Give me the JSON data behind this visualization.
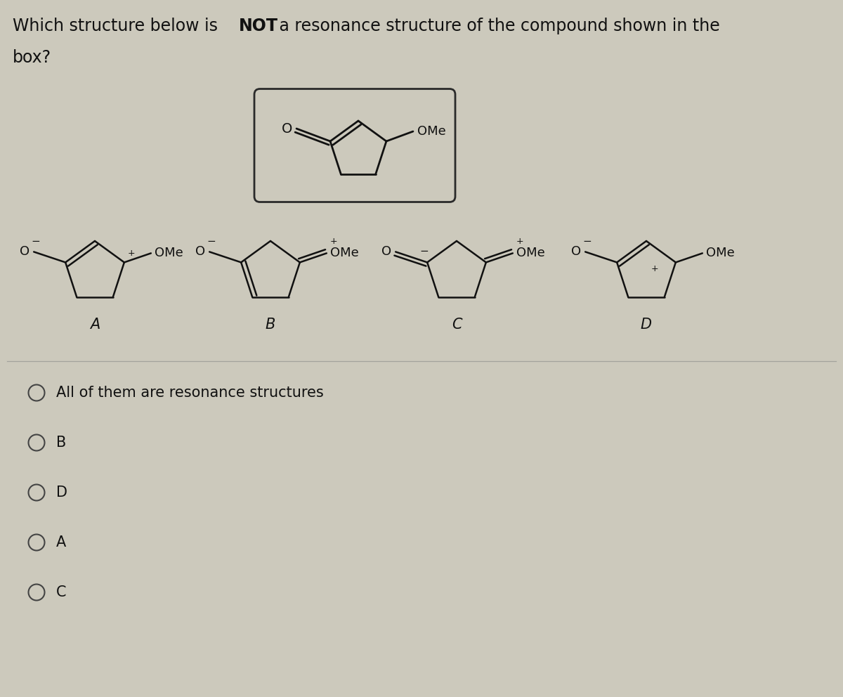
{
  "bg_color": "#ccc9bc",
  "title_text": "Which structure below is NOT a resonance structure of the compound shown in the\nbox?",
  "title_bold": "NOT",
  "answer_options": [
    "All of them are resonance structures",
    "B",
    "D",
    "A",
    "C"
  ],
  "text_color": "#111111",
  "font_size_title": 17,
  "font_size_mol": 13,
  "font_size_label": 15
}
